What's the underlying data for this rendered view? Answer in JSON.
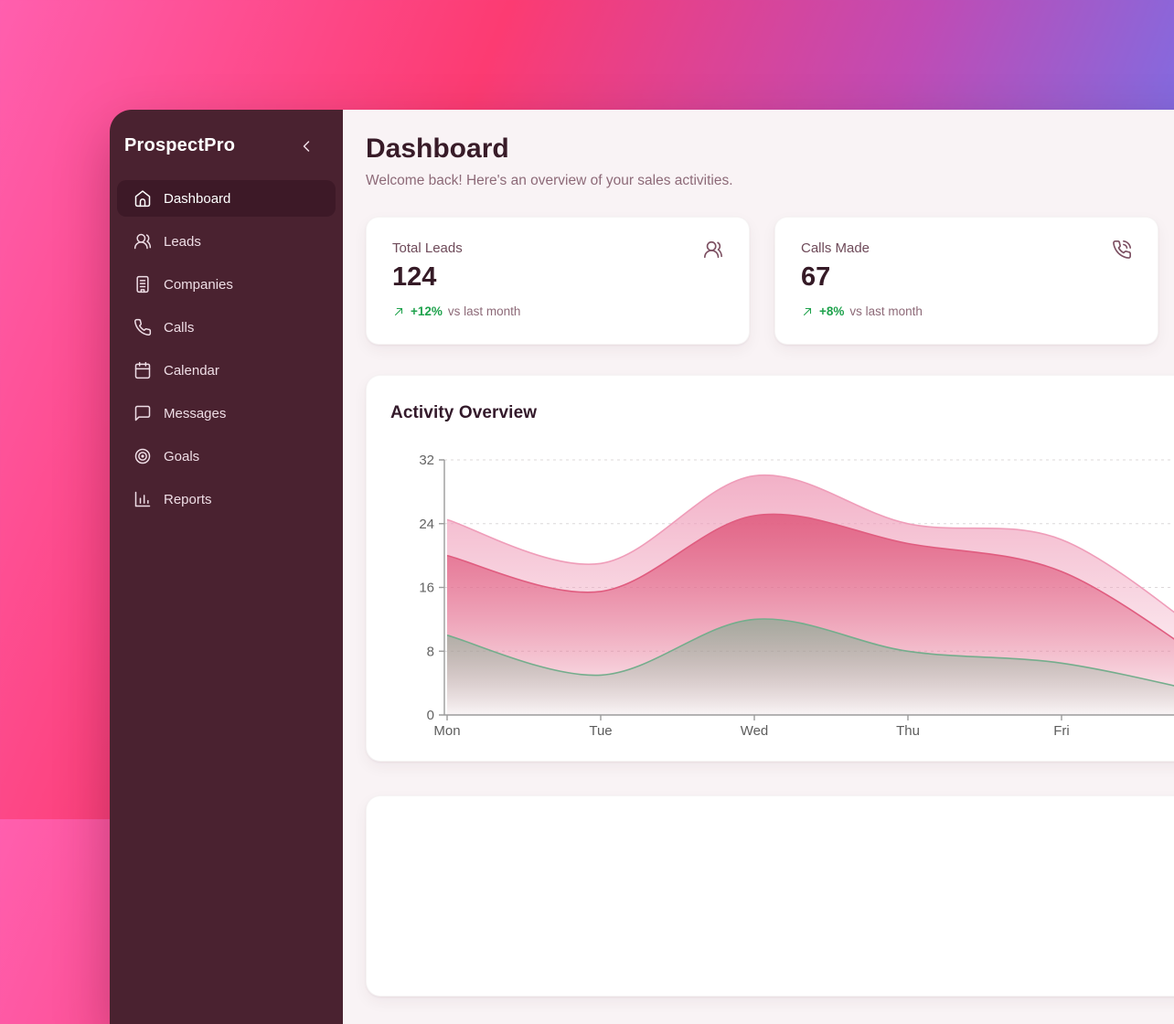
{
  "sidebar": {
    "brand": "ProspectPro",
    "items": [
      {
        "label": "Dashboard",
        "icon": "home-icon",
        "active": true
      },
      {
        "label": "Leads",
        "icon": "users-icon",
        "active": false
      },
      {
        "label": "Companies",
        "icon": "building-icon",
        "active": false
      },
      {
        "label": "Calls",
        "icon": "phone-icon",
        "active": false
      },
      {
        "label": "Calendar",
        "icon": "calendar-icon",
        "active": false
      },
      {
        "label": "Messages",
        "icon": "message-square-icon",
        "active": false
      },
      {
        "label": "Goals",
        "icon": "target-icon",
        "active": false
      },
      {
        "label": "Reports",
        "icon": "bar-chart-icon",
        "active": false
      }
    ]
  },
  "header": {
    "title": "Dashboard",
    "subtitle": "Welcome back! Here's an overview of your sales activities."
  },
  "stats": [
    {
      "label": "Total Leads",
      "value": "124",
      "change": "+12%",
      "change_note": "vs last month",
      "icon": "users-icon",
      "trend_icon": "arrow-up-right-icon",
      "trend": "up"
    },
    {
      "label": "Calls Made",
      "value": "67",
      "change": "+8%",
      "change_note": "vs last month",
      "icon": "phone-call-icon",
      "trend_icon": "arrow-up-right-icon",
      "trend": "up"
    }
  ],
  "chart_data": {
    "type": "area",
    "title": "Activity Overview",
    "categories": [
      "Mon",
      "Tue",
      "Wed",
      "Thu",
      "Fri",
      ""
    ],
    "series": [
      {
        "name": "light-pink-band",
        "color": "#ef9db9",
        "fill_opacity": 0.8,
        "values": [
          24.5,
          19,
          30,
          24,
          22,
          9
        ]
      },
      {
        "name": "rose-band",
        "color": "#e05c7f",
        "fill_opacity": 0.9,
        "values": [
          20,
          15.5,
          25,
          21.5,
          18,
          6
        ]
      },
      {
        "name": "green-band",
        "color": "#74ad8c",
        "fill_opacity": 0.6,
        "values": [
          10,
          5,
          12,
          8,
          6.5,
          2.5
        ]
      }
    ],
    "ylim": [
      0,
      32
    ],
    "yticks": [
      0,
      8,
      16,
      24,
      32
    ],
    "grid": "dashed-horizontal",
    "legend": "none",
    "note": "curves continue past the right edge of the viewport; sixth x position is unlabeled"
  },
  "colors": {
    "positive_green": "#1ea24c",
    "sidebar_bg": "#4a2230",
    "sidebar_active_bg": "#3d1927",
    "main_bg": "#f9f3f5",
    "heading": "#381b28",
    "muted_text": "#8d6a78",
    "icon_maroon": "#7c4f61",
    "grid_line": "#dcd8da",
    "axis_line": "#9b9b9b"
  }
}
